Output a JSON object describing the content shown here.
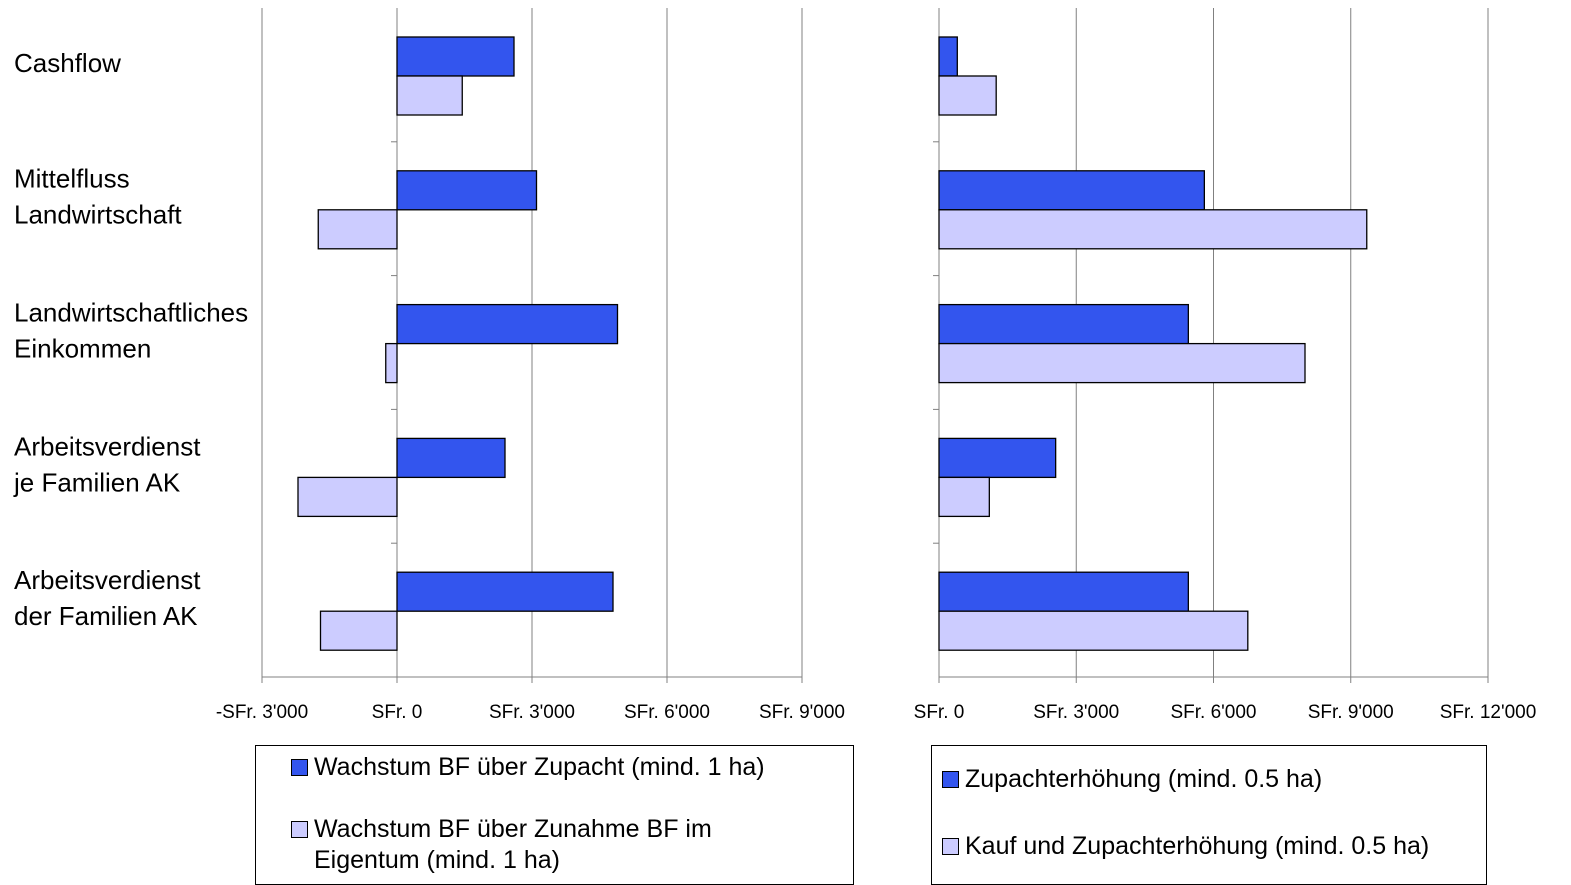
{
  "chart_data": [
    {
      "type": "barh",
      "categories": [
        [
          "Cashflow"
        ],
        [
          "Mittelfluss",
          "Landwirtschaft"
        ],
        [
          "Landwirtschaftliches",
          "Einkommen"
        ],
        [
          "Arbeitsverdienst",
          "je Familien AK"
        ],
        [
          "Arbeitsverdienst",
          "der Familien AK"
        ]
      ],
      "series": [
        {
          "name": "Wachstum BF über Zupacht (mind. 1 ha)",
          "color": "#3355ee",
          "values": [
            2600,
            3100,
            4900,
            2400,
            4800
          ]
        },
        {
          "name": "Wachstum BF über Zunahme BF im Eigentum (mind. 1 ha)",
          "color": "#ccccff",
          "values": [
            1450,
            -1750,
            -250,
            -2200,
            -1700
          ]
        }
      ],
      "xlim": [
        -3000,
        9000
      ],
      "xticks": [
        {
          "value": -3000,
          "label": "-SFr. 3'000"
        },
        {
          "value": 0,
          "label": "SFr. 0"
        },
        {
          "value": 3000,
          "label": "SFr. 3'000"
        },
        {
          "value": 6000,
          "label": "SFr. 6'000"
        },
        {
          "value": 9000,
          "label": "SFr. 9'000"
        }
      ],
      "grid": true
    },
    {
      "type": "barh",
      "series": [
        {
          "name": "Zupachterhöhung (mind. 0.5 ha)",
          "color": "#3355ee",
          "values": [
            400,
            5800,
            5450,
            2550,
            5450
          ]
        },
        {
          "name": "Kauf und Zupachterhöhung (mind. 0.5 ha)",
          "color": "#ccccff",
          "values": [
            1250,
            9350,
            8000,
            1100,
            6750
          ]
        }
      ],
      "xlim": [
        0,
        12000
      ],
      "xticks": [
        {
          "value": 0,
          "label": "SFr. 0"
        },
        {
          "value": 3000,
          "label": "SFr. 3'000"
        },
        {
          "value": 6000,
          "label": "SFr. 6'000"
        },
        {
          "value": 9000,
          "label": "SFr. 9'000"
        },
        {
          "value": 12000,
          "label": "SFr. 12'000"
        }
      ],
      "grid": true
    }
  ]
}
